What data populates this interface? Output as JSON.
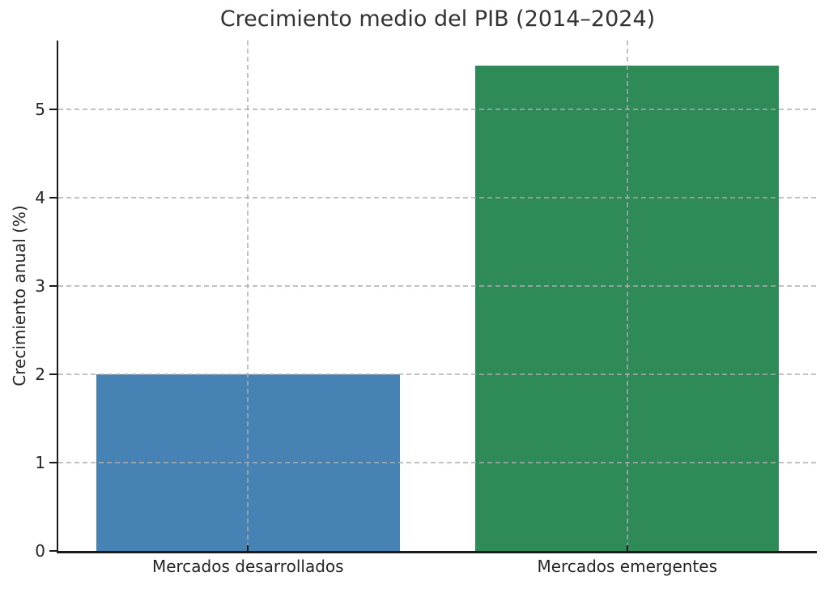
{
  "chart_data": {
    "type": "bar",
    "title": "Crecimiento medio del PIB (2014–2024)",
    "categories": [
      "Mercados desarrollados",
      "Mercados emergentes"
    ],
    "values": [
      2.0,
      5.5
    ],
    "bar_colors": [
      "#4682b4",
      "#2e8b57"
    ],
    "xlabel": "",
    "ylabel": "Crecimiento anual (%)",
    "ylim": [
      0,
      5.78
    ],
    "yticks": [
      0,
      1,
      2,
      3,
      4,
      5
    ],
    "bar_width_fraction": 0.8,
    "grid": "dashed light-gray gridlines on both axes, drawn over bars",
    "legend": "none",
    "spines": "left and bottom only",
    "colors": {
      "background": "#ffffff",
      "text": "#262626",
      "title": "#333333",
      "spine": "#1a1a1a",
      "gridline": "#acacac"
    }
  }
}
